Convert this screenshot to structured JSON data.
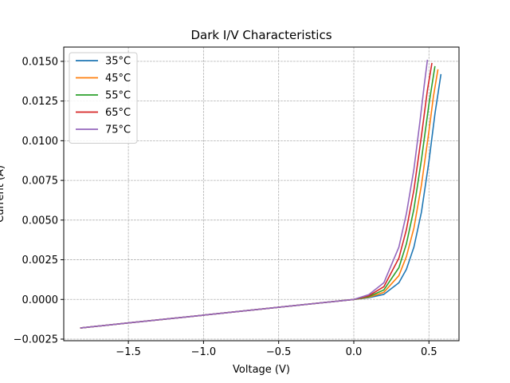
{
  "chart_data": {
    "type": "line",
    "title": "Dark I/V Characteristics",
    "xlabel": "Voltage (V)",
    "ylabel": "Current (A)",
    "xlim": [
      -1.93,
      0.7
    ],
    "ylim": [
      -0.0026,
      0.0159
    ],
    "xticks": [
      -1.5,
      -1.0,
      -0.5,
      0.0,
      0.5
    ],
    "xtick_labels": [
      "−1.5",
      "−1.0",
      "−0.5",
      "0.0",
      "0.5"
    ],
    "yticks": [
      -0.0025,
      0.0,
      0.0025,
      0.005,
      0.0075,
      0.01,
      0.0125,
      0.015
    ],
    "ytick_labels": [
      "−0.0025",
      "0.0000",
      "0.0025",
      "0.0050",
      "0.0075",
      "0.0100",
      "0.0125",
      "0.0150"
    ],
    "grid": true,
    "legend": "top-left",
    "series": [
      {
        "name": "35°C",
        "color": "#1f77b4",
        "x": [
          -1.82,
          -1.5,
          -1.0,
          -0.5,
          0.0,
          0.1,
          0.2,
          0.3,
          0.35,
          0.4,
          0.45,
          0.5,
          0.54,
          0.58
        ],
        "y": [
          -0.0018,
          -0.00148,
          -0.00099,
          -0.00049,
          0.0,
          0.00011,
          0.00032,
          0.00105,
          0.0019,
          0.0033,
          0.0055,
          0.0087,
          0.0117,
          0.0142
        ]
      },
      {
        "name": "45°C",
        "color": "#ff7f0e",
        "x": [
          -1.82,
          -1.5,
          -1.0,
          -0.5,
          0.0,
          0.1,
          0.2,
          0.3,
          0.35,
          0.4,
          0.45,
          0.5,
          0.53,
          0.56
        ],
        "y": [
          -0.0018,
          -0.00148,
          -0.00099,
          -0.00049,
          0.0,
          0.00014,
          0.00045,
          0.0015,
          0.0027,
          0.0045,
          0.0072,
          0.0106,
          0.0128,
          0.0145
        ]
      },
      {
        "name": "55°C",
        "color": "#2ca02c",
        "x": [
          -1.82,
          -1.5,
          -1.0,
          -0.5,
          0.0,
          0.1,
          0.2,
          0.3,
          0.35,
          0.4,
          0.45,
          0.5,
          0.54
        ],
        "y": [
          -0.0018,
          -0.00148,
          -0.00099,
          -0.00049,
          0.0,
          0.00018,
          0.0006,
          0.002,
          0.0035,
          0.0057,
          0.0088,
          0.0123,
          0.0147
        ]
      },
      {
        "name": "65°C",
        "color": "#d62728",
        "x": [
          -1.82,
          -1.5,
          -1.0,
          -0.5,
          0.0,
          0.1,
          0.2,
          0.3,
          0.35,
          0.4,
          0.45,
          0.49,
          0.52
        ],
        "y": [
          -0.0018,
          -0.00148,
          -0.00099,
          -0.00049,
          0.0,
          0.00023,
          0.0008,
          0.0026,
          0.0044,
          0.0069,
          0.0103,
          0.0132,
          0.0149
        ]
      },
      {
        "name": "75°C",
        "color": "#9467bd",
        "x": [
          -1.82,
          -1.5,
          -1.0,
          -0.5,
          0.0,
          0.1,
          0.2,
          0.3,
          0.35,
          0.4,
          0.44,
          0.47,
          0.49
        ],
        "y": [
          -0.0018,
          -0.00148,
          -0.00099,
          -0.00049,
          0.0,
          0.0003,
          0.00105,
          0.0033,
          0.0054,
          0.0082,
          0.0112,
          0.0136,
          0.0151
        ]
      }
    ]
  }
}
